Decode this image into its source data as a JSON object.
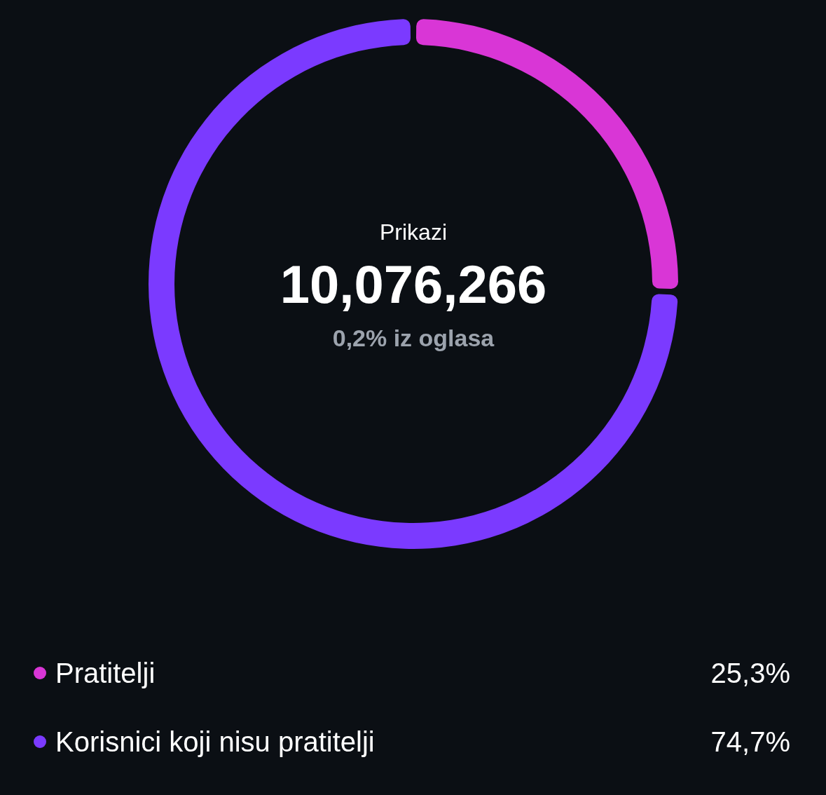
{
  "chart_data": {
    "type": "donut",
    "title": "Prikazi",
    "annotations": [
      "10,076,266",
      "0,2% iz oglasa"
    ],
    "categories": [
      "Pratitelji",
      "Korisnici koji nisu pratitelji"
    ],
    "values": [
      25.3,
      74.7
    ],
    "colors": [
      "#d936d6",
      "#7b3aff"
    ],
    "value_labels": [
      "25,3%",
      "74,7%"
    ],
    "legend": "bottom"
  }
}
